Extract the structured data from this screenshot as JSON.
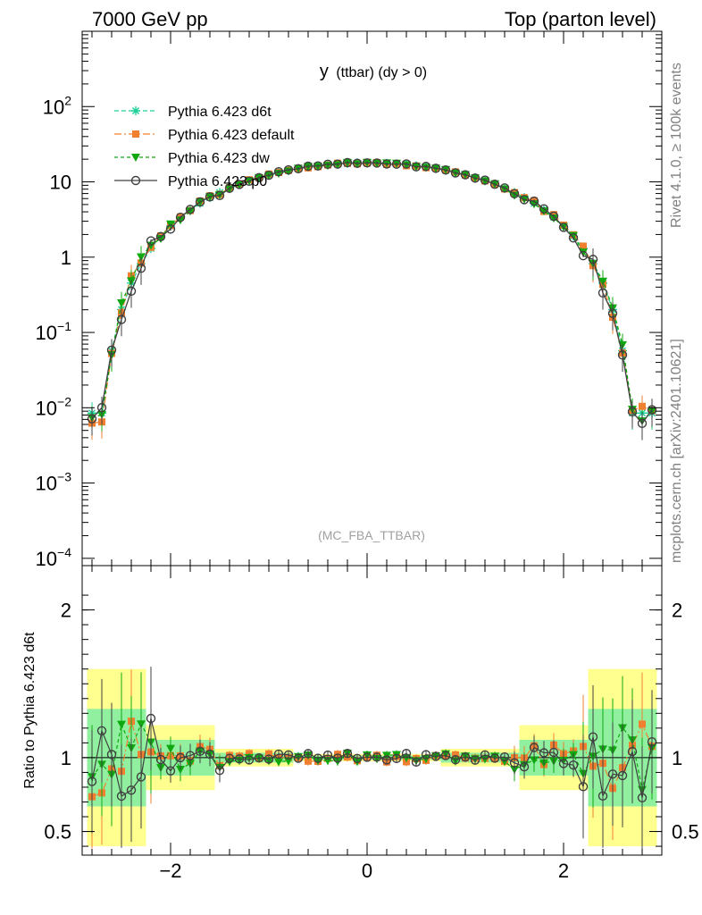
{
  "header": {
    "left_title": "7000 GeV pp",
    "right_title": "Top (parton level)"
  },
  "side_labels": {
    "rivet": "Rivet 4.1.0, ≥ 100k events",
    "mcplots": "mcplots.cern.ch [arXiv:2401.10621]"
  },
  "colors": {
    "d6t": "#1fcf9a",
    "default": "#f08030",
    "dw": "#10a810",
    "p0": "#404040",
    "band_inner": "#90f0a0",
    "band_outer": "#ffff90"
  },
  "chart_data": [
    {
      "type": "line",
      "title": "y (ttbar) (dy > 0)",
      "title_main": "y",
      "title_sub": "(ttbar) (dy > 0)",
      "analysis_tag": "(MC_FBA_TTBAR)",
      "xlabel": "",
      "ylabel": "",
      "yscale": "log",
      "xlim": [
        -2.9,
        3.0
      ],
      "ylim": [
        8e-05,
        1000
      ],
      "y_ticks": [
        {
          "value": 0.0001,
          "base": "10",
          "exp": "−4"
        },
        {
          "value": 0.001,
          "base": "10",
          "exp": "−3"
        },
        {
          "value": 0.01,
          "base": "10",
          "exp": "−2"
        },
        {
          "value": 0.1,
          "base": "10",
          "exp": "−1"
        },
        {
          "value": 1,
          "base": "1",
          "exp": ""
        },
        {
          "value": 10,
          "base": "10",
          "exp": ""
        },
        {
          "value": 100,
          "base": "10",
          "exp": "2"
        }
      ],
      "legend_position": "top-left",
      "series": [
        {
          "key": "d6t",
          "name": "Pythia 6.423 d6t",
          "marker": "star",
          "dash": "5,3"
        },
        {
          "key": "default",
          "name": "Pythia 6.423 default",
          "marker": "square",
          "dash": "8,3,2,3"
        },
        {
          "key": "dw",
          "name": "Pythia 6.423 dw",
          "marker": "triangle-down",
          "dash": "4,3"
        },
        {
          "key": "p0",
          "name": "Pythia 6.423 p0",
          "marker": "circle-open",
          "dash": ""
        }
      ],
      "shape": {
        "x_min": -2.8,
        "x_max": 2.9,
        "bin_width": 0.1,
        "peak": 17.8,
        "edge": 2.75,
        "power": 0.8
      }
    },
    {
      "type": "line",
      "title": "Ratio",
      "xlabel": "",
      "ylabel": "Ratio to Pythia 6.423 d6t",
      "xlim": [
        -2.9,
        3.0
      ],
      "ylim": [
        0.34,
        2.3
      ],
      "x_ticks": [
        -2,
        0,
        2
      ],
      "x_tick_labels": [
        "−2",
        "0",
        "2"
      ],
      "y_ticks": [
        0.5,
        1,
        2
      ],
      "y_tick_labels": [
        "0.5",
        "1",
        "2"
      ],
      "reference": 1
    }
  ]
}
